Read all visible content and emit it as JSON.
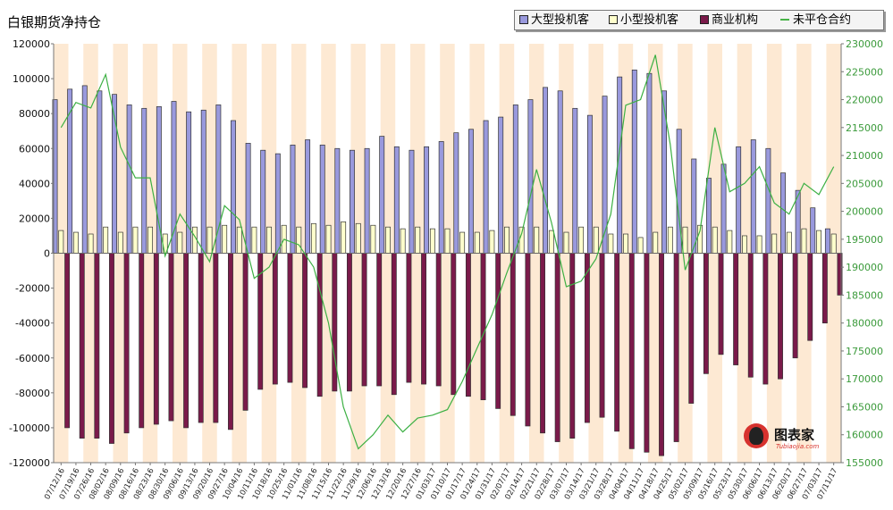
{
  "chart_data": {
    "type": "bar",
    "title": "白银期货净持仓",
    "categories": [
      "07/12/16",
      "07/19/16",
      "07/26/16",
      "08/02/16",
      "08/09/16",
      "08/16/16",
      "08/23/16",
      "08/30/16",
      "09/06/16",
      "09/13/16",
      "09/20/16",
      "09/27/16",
      "10/04/16",
      "10/11/16",
      "10/18/16",
      "10/25/16",
      "11/01/16",
      "11/08/16",
      "11/15/16",
      "11/22/16",
      "11/29/16",
      "12/06/16",
      "12/13/16",
      "12/20/16",
      "12/27/16",
      "01/03/17",
      "01/10/17",
      "01/17/17",
      "01/24/17",
      "01/31/17",
      "02/07/17",
      "02/14/17",
      "02/21/17",
      "02/28/17",
      "03/07/17",
      "03/14/17",
      "03/21/17",
      "03/28/17",
      "04/04/17",
      "04/11/17",
      "04/18/17",
      "04/25/17",
      "05/02/17",
      "05/09/17",
      "05/16/17",
      "05/23/17",
      "05/30/17",
      "06/06/17",
      "06/13/17",
      "06/20/17",
      "06/27/17",
      "07/03/17",
      "07/11/17"
    ],
    "x_tick_labels": [
      "07/12/16",
      "07/19/16",
      "07/26/16",
      "08/02/16",
      "08/09/16",
      "08/16/16",
      "08/23/16",
      "08/30/16",
      "09/06/16",
      "09/13/16",
      "09/20/16",
      "09/27/16",
      "10/04/16",
      "10/11/16",
      "10/18/16",
      "10/25/16",
      "11/01/16",
      "11/08/16",
      "11/15/16",
      "11/22/16",
      "11/29/16",
      "12/06/16",
      "12/13/16",
      "12/20/16",
      "12/27/16",
      "01/03/17",
      "01/10/17",
      "01/17/17",
      "01/24/17",
      "01/31/17",
      "02/07/17",
      "02/14/17",
      "02/21/17",
      "02/28/17",
      "03/07/17",
      "03/14/17",
      "03/21/17",
      "03/28/17",
      "04/04/17",
      "04/11/17",
      "04/18/17",
      "04/25/17",
      "05/02/17",
      "05/09/17",
      "05/16/17",
      "05/23/17",
      "05/30/17",
      "06/06/17",
      "06/13/17",
      "06/20/17",
      "06/27/17",
      "07/03/17",
      "07/11/17"
    ],
    "series": [
      {
        "name": "大型投机客",
        "type": "bar",
        "axis": "left",
        "color": "#9999dd",
        "values": [
          88000,
          94000,
          96000,
          93000,
          91000,
          85000,
          83000,
          84000,
          87000,
          81000,
          82000,
          85000,
          76000,
          63000,
          59000,
          57000,
          62000,
          65000,
          62000,
          60000,
          59000,
          60000,
          67000,
          61000,
          59000,
          61000,
          64000,
          69000,
          71000,
          76000,
          78000,
          85000,
          88000,
          95000,
          93000,
          83000,
          79000,
          90000,
          101000,
          105000,
          103000,
          93000,
          71000,
          54000,
          43000,
          51000,
          61000,
          65000,
          60000,
          46000,
          36000,
          26000,
          14000
        ]
      },
      {
        "name": "小型投机客",
        "type": "bar",
        "axis": "left",
        "color": "#ffffcc",
        "values": [
          13000,
          12000,
          11000,
          15000,
          12000,
          15000,
          15000,
          11000,
          12000,
          15000,
          15000,
          16000,
          15000,
          15000,
          15000,
          16000,
          15000,
          17000,
          16000,
          18000,
          17000,
          16000,
          15000,
          14000,
          15000,
          14000,
          14000,
          12000,
          12000,
          13000,
          15000,
          15000,
          15000,
          13000,
          12000,
          15000,
          15000,
          11000,
          11000,
          9000,
          12000,
          15000,
          15000,
          16000,
          15000,
          13000,
          10000,
          10000,
          11000,
          12000,
          14000,
          13000,
          11000
        ]
      },
      {
        "name": "商业机构",
        "type": "bar",
        "axis": "left",
        "color": "#7a1a4a",
        "values": [
          -100000,
          -106000,
          -106000,
          -109000,
          -103000,
          -100000,
          -98000,
          -96000,
          -100000,
          -97000,
          -97000,
          -101000,
          -90000,
          -78000,
          -75000,
          -74000,
          -77000,
          -82000,
          -79000,
          -79000,
          -76000,
          -76000,
          -81000,
          -74000,
          -75000,
          -76000,
          -81000,
          -82000,
          -84000,
          -89000,
          -93000,
          -99000,
          -103000,
          -108000,
          -106000,
          -97000,
          -94000,
          -102000,
          -112000,
          -114000,
          -116000,
          -108000,
          -86000,
          -69000,
          -58000,
          -64000,
          -71000,
          -75000,
          -72000,
          -60000,
          -50000,
          -40000,
          -24000
        ]
      },
      {
        "name": "未平仓合约",
        "type": "line",
        "axis": "right",
        "color": "#3cb043",
        "values": [
          215000,
          219500,
          218500,
          224500,
          211500,
          206000,
          206000,
          192000,
          199500,
          195500,
          191000,
          201000,
          198500,
          188000,
          190000,
          195000,
          194000,
          190000,
          180000,
          165000,
          157500,
          160000,
          163500,
          160500,
          163000,
          163500,
          164500,
          169500,
          175500,
          181500,
          189000,
          196000,
          207500,
          198000,
          186500,
          187500,
          191500,
          199500,
          219000,
          220000,
          228000,
          212000,
          189500,
          196500,
          215000,
          203500,
          205000,
          208000,
          201500,
          199500,
          205000,
          203000,
          208000
        ]
      }
    ],
    "left_axis": {
      "min": -120000,
      "max": 120000,
      "step": 20000,
      "tick_labels": [
        "120000",
        "100000",
        "80000",
        "60000",
        "40000",
        "20000",
        "0",
        "-20000",
        "-40000",
        "-60000",
        "-80000",
        "-100000",
        "-120000"
      ]
    },
    "right_axis": {
      "min": 155000,
      "max": 230000,
      "step": 5000,
      "tick_labels": [
        "230000",
        "225000",
        "220000",
        "215000",
        "210000",
        "205000",
        "200000",
        "195000",
        "190000",
        "185000",
        "180000",
        "175000",
        "170000",
        "165000",
        "160000",
        "155000"
      ]
    },
    "grid": false,
    "legend_position": "top-right",
    "band_colors": [
      "#fde9d3",
      "#ffffff"
    ]
  },
  "watermark": {
    "name": "图表家",
    "sub": "Tubiaojia.com"
  }
}
